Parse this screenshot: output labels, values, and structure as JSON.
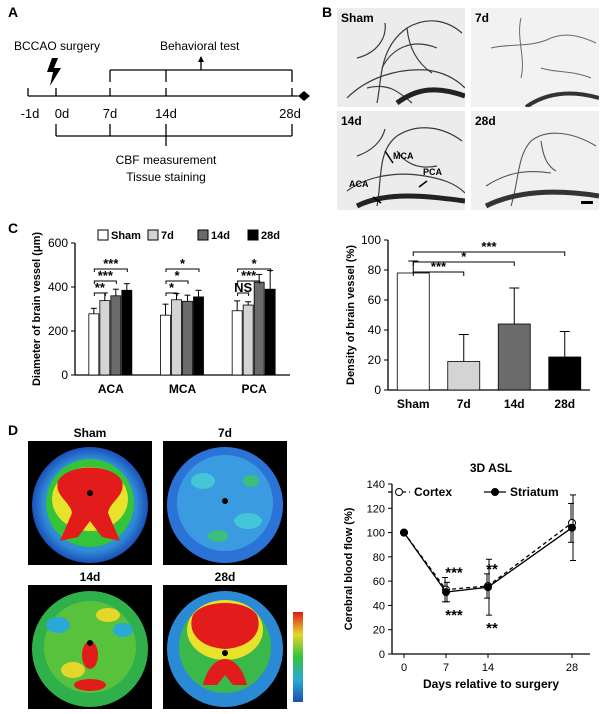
{
  "panel_labels": {
    "a": "A",
    "b": "B",
    "c": "C",
    "d": "D"
  },
  "timeline": {
    "surgery_label": "BCCAO surgery",
    "behavior_label": "Behavioral test",
    "cbf_label": "CBF measurement",
    "tissue_label": "Tissue staining",
    "ticks": [
      "-1d",
      "0d",
      "7d",
      "14d",
      "28d"
    ]
  },
  "angio": {
    "titles": [
      "Sham",
      "7d",
      "14d",
      "28d"
    ],
    "annotations": {
      "mca": "MCA",
      "aca": "ACA",
      "pca": "PCA"
    }
  },
  "asl_images": {
    "titles": [
      "Sham",
      "7d",
      "14d",
      "28d"
    ]
  },
  "chart_data": [
    {
      "type": "bar",
      "title": "",
      "ylabel": "Diameter of brain vessel (μm)",
      "xlabel": "",
      "categories": [
        "ACA",
        "MCA",
        "PCA"
      ],
      "ylim": [
        0,
        600
      ],
      "yticks": [
        "0",
        "200",
        "400",
        "600"
      ],
      "series": [
        {
          "name": "Sham",
          "color": "#ffffff",
          "values": [
            278,
            272,
            292
          ],
          "errors": [
            25,
            50,
            45
          ]
        },
        {
          "name": "7d",
          "color": "#d4d4d4",
          "values": [
            338,
            342,
            318
          ],
          "errors": [
            35,
            28,
            15
          ]
        },
        {
          "name": "14d",
          "color": "#6b6b6b",
          "values": [
            360,
            335,
            422
          ],
          "errors": [
            30,
            28,
            35
          ]
        },
        {
          "name": "28d",
          "color": "#000000",
          "values": [
            385,
            355,
            390
          ],
          "errors": [
            30,
            30,
            85
          ]
        }
      ],
      "significance": [
        {
          "group": 0,
          "from": 0,
          "to": 1,
          "label": "**",
          "level": 0
        },
        {
          "group": 0,
          "from": 0,
          "to": 2,
          "label": "***",
          "level": 1
        },
        {
          "group": 0,
          "from": 0,
          "to": 3,
          "label": "***",
          "level": 2
        },
        {
          "group": 1,
          "from": 0,
          "to": 1,
          "label": "*",
          "level": 0
        },
        {
          "group": 1,
          "from": 0,
          "to": 2,
          "label": "*",
          "level": 1
        },
        {
          "group": 1,
          "from": 0,
          "to": 3,
          "label": "*",
          "level": 2
        },
        {
          "group": 2,
          "from": 0,
          "to": 1,
          "label": "NS",
          "level": 0
        },
        {
          "group": 2,
          "from": 0,
          "to": 2,
          "label": "***",
          "level": 1
        },
        {
          "group": 2,
          "from": 0,
          "to": 3,
          "label": "*",
          "level": 2
        }
      ]
    },
    {
      "type": "bar",
      "title": "",
      "ylabel": "Density of brain vessel (%)",
      "xlabel": "",
      "categories": [
        "Sham",
        "7d",
        "14d",
        "28d"
      ],
      "ylim": [
        0,
        100
      ],
      "yticks": [
        "0",
        "20",
        "40",
        "60",
        "80",
        "100"
      ],
      "colors": [
        "#ffffff",
        "#d4d4d4",
        "#6b6b6b",
        "#000000"
      ],
      "values": [
        78,
        19,
        44,
        22
      ],
      "errors": [
        8,
        18,
        24,
        17
      ],
      "significance": [
        {
          "from": 0,
          "to": 1,
          "label": "***",
          "level": 0
        },
        {
          "from": 0,
          "to": 2,
          "label": "*",
          "level": 1
        },
        {
          "from": 0,
          "to": 3,
          "label": "***",
          "level": 2
        }
      ]
    },
    {
      "type": "line",
      "title": "3D ASL",
      "ylabel": "Cerebral blood flow (%)",
      "xlabel": "Days relative to surgery",
      "x": [
        0,
        7,
        14,
        28
      ],
      "xticks": [
        "0",
        "7",
        "14",
        "28"
      ],
      "ylim": [
        0,
        140
      ],
      "yticks": [
        "0",
        "20",
        "40",
        "60",
        "80",
        "100",
        "120",
        "140"
      ],
      "series": [
        {
          "name": "Cortex",
          "values": [
            100,
            53,
            56,
            108
          ],
          "errors": [
            0,
            10,
            10,
            16
          ],
          "marker": "open",
          "dash": true,
          "sig": [
            "",
            "***",
            "**",
            ""
          ]
        },
        {
          "name": "Striatum",
          "values": [
            100,
            51,
            55,
            104
          ],
          "errors": [
            0,
            8,
            23,
            27
          ],
          "marker": "filled",
          "dash": false,
          "sig": [
            "",
            "***",
            "**",
            ""
          ]
        }
      ]
    }
  ]
}
